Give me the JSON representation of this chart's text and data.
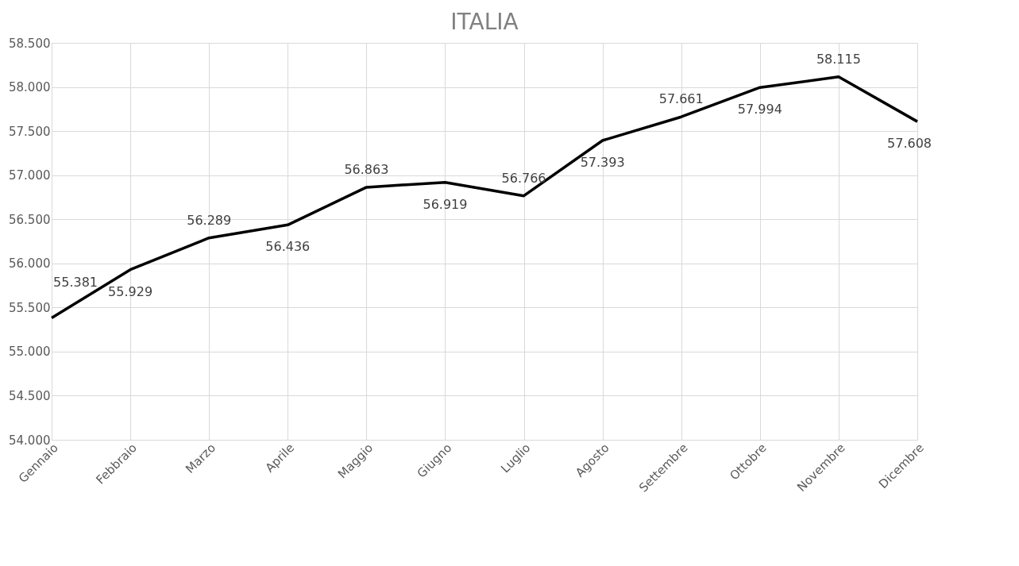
{
  "chart_data": {
    "type": "line",
    "title": "ITALIA",
    "categories": [
      "Gennaio",
      "Febbraio",
      "Marzo",
      "Aprile",
      "Maggio",
      "Giugno",
      "Luglio",
      "Agosto",
      "Settembre",
      "Ottobre",
      "Novembre",
      "Dicembre"
    ],
    "series": [
      {
        "color": "#000000",
        "values": [
          55381,
          55929,
          56289,
          56436,
          56863,
          56919,
          56766,
          57393,
          57661,
          57994,
          58115,
          57608
        ],
        "value_labels": [
          "55.381",
          "55.929",
          "56.289",
          "56.436",
          "56.863",
          "56.919",
          "56.766",
          "57.393",
          "57.661",
          "57.994",
          "58.115",
          "57.608"
        ]
      }
    ],
    "ylim": [
      54000,
      58500
    ],
    "yticks": [
      {
        "value": 54000,
        "label": "54.000"
      },
      {
        "value": 54500,
        "label": "54.500"
      },
      {
        "value": 55000,
        "label": "55.000"
      },
      {
        "value": 55500,
        "label": "55.500"
      },
      {
        "value": 56000,
        "label": "56.000"
      },
      {
        "value": 56500,
        "label": "56.500"
      },
      {
        "value": 57000,
        "label": "57.000"
      },
      {
        "value": 57500,
        "label": "57.500"
      },
      {
        "value": 58000,
        "label": "58.000"
      },
      {
        "value": 58500,
        "label": "58.500"
      }
    ],
    "grid": true,
    "marker": "none",
    "line_style": "solid"
  }
}
